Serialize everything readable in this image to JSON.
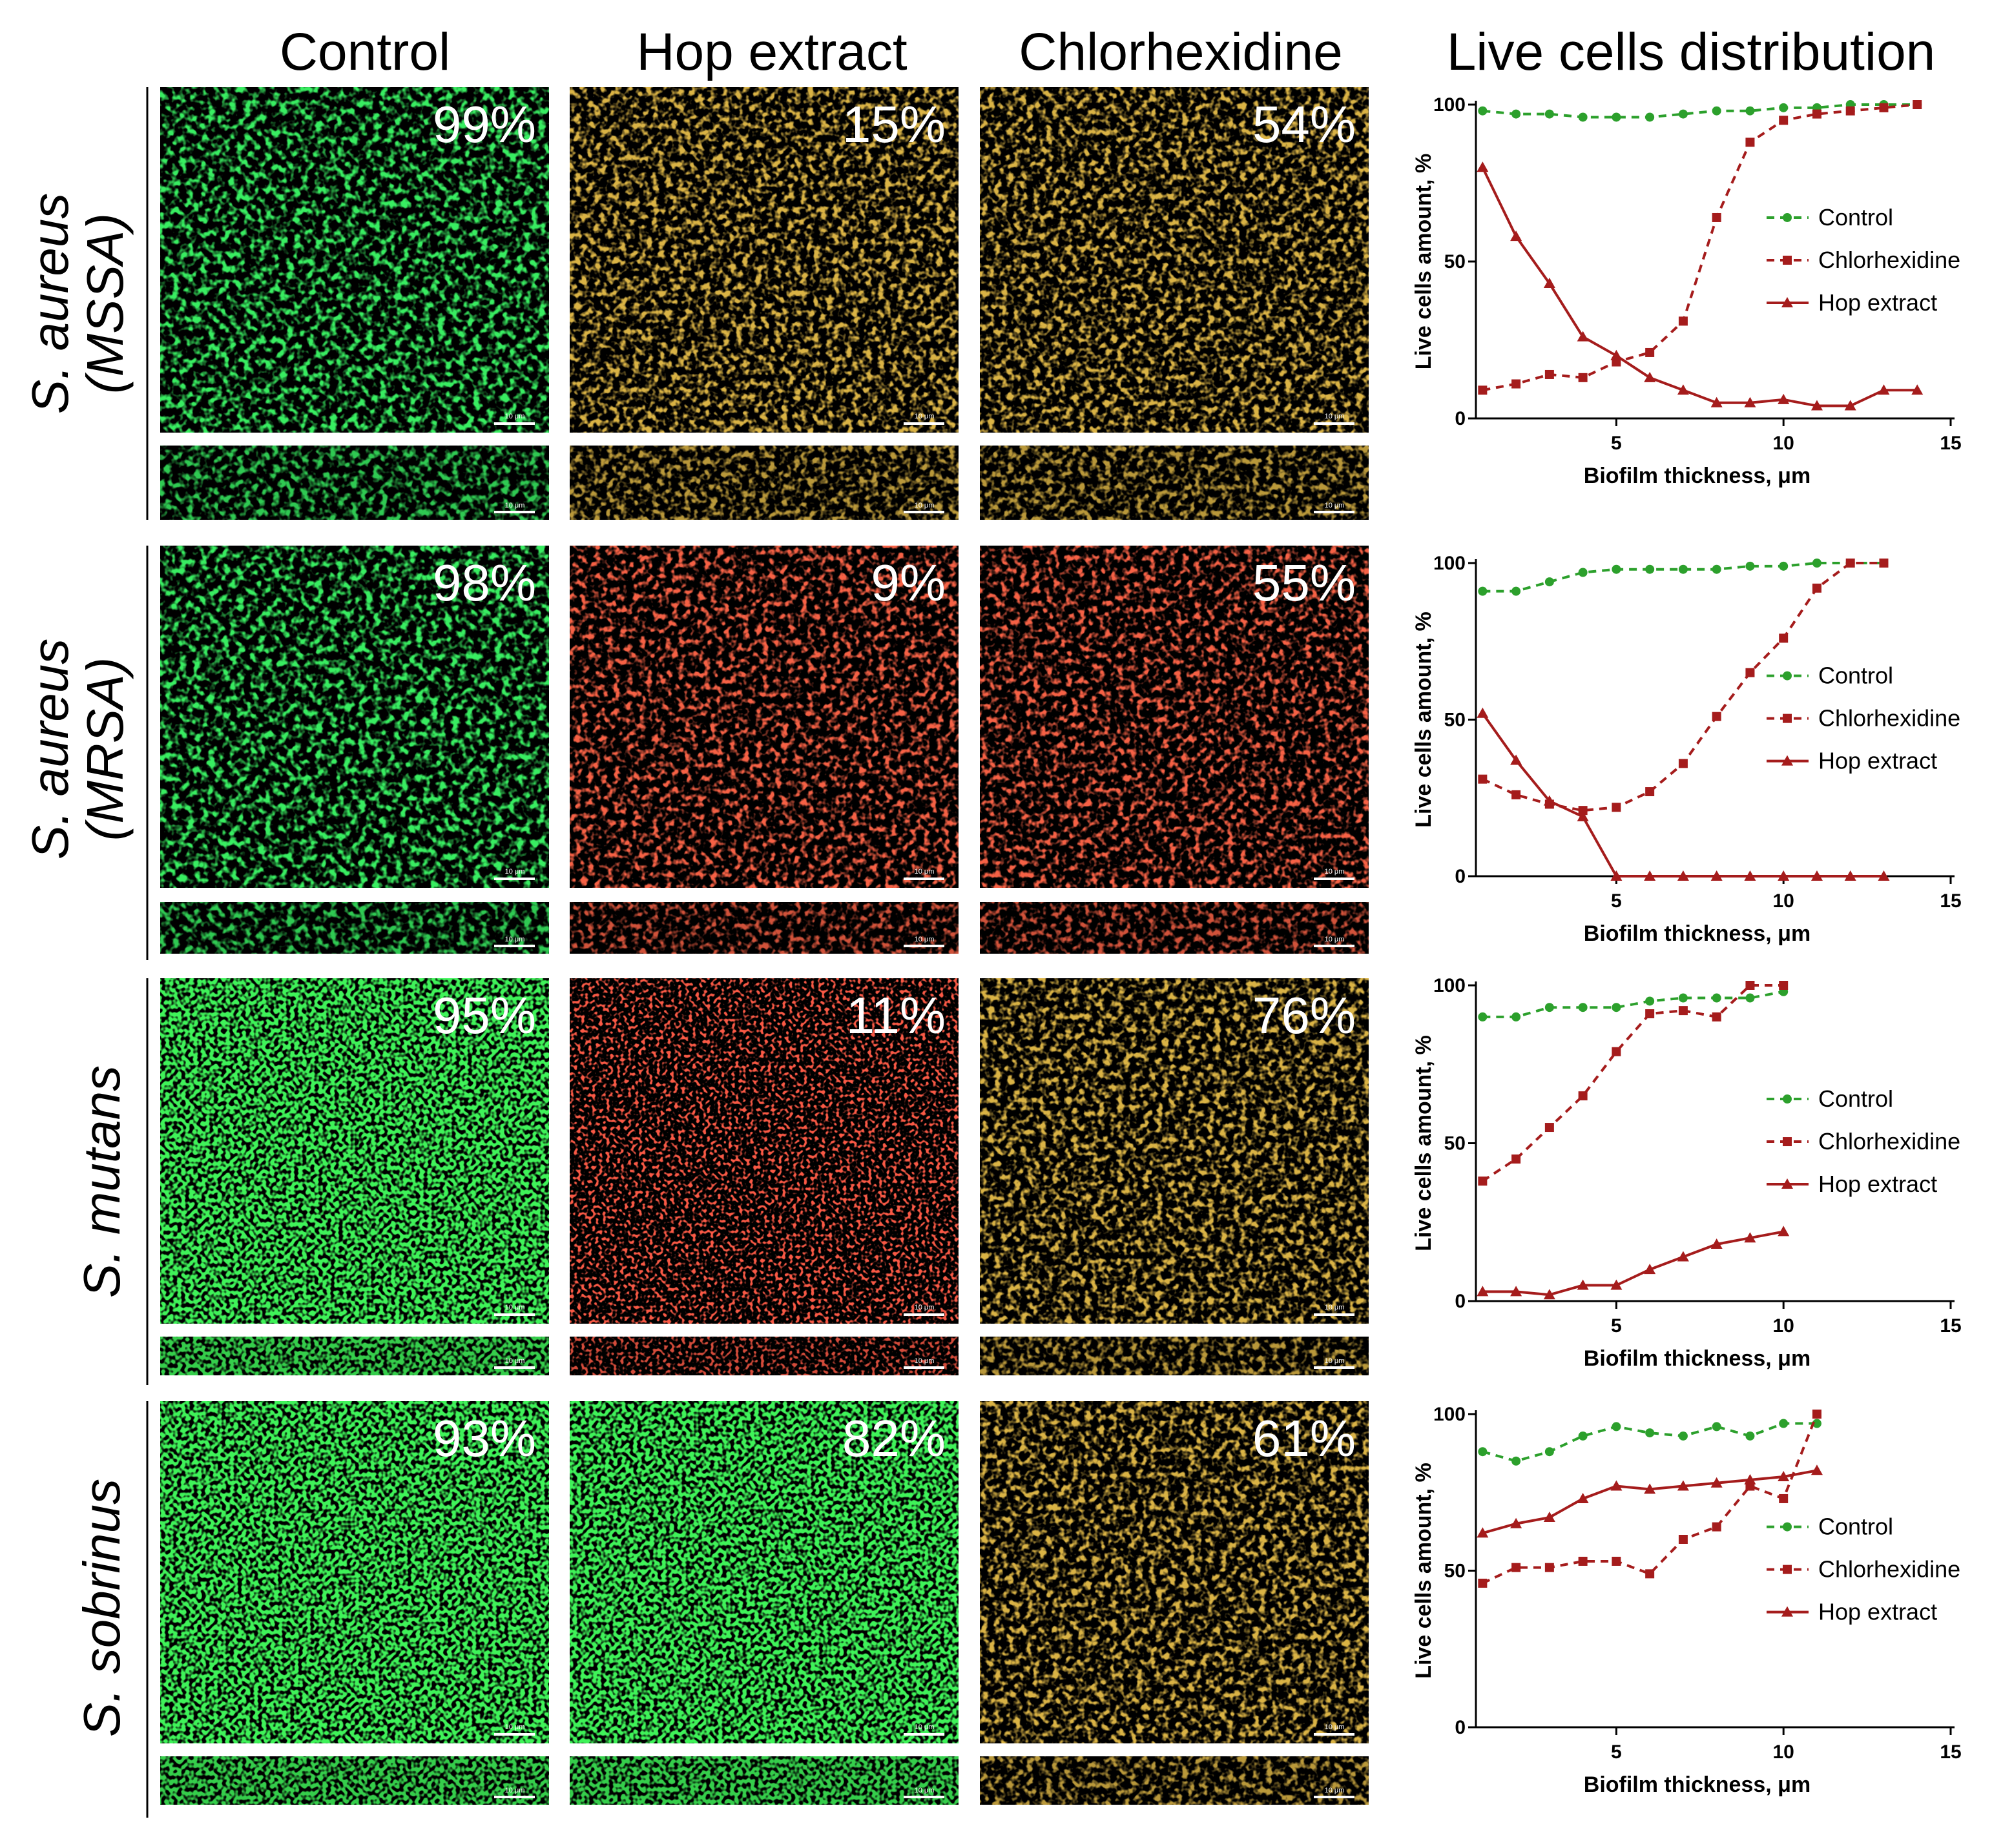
{
  "column_headers": [
    "Control",
    "Hop extract",
    "Chlorhexidine",
    "Live cells distribution"
  ],
  "rows": [
    {
      "label_species": "S. aureus",
      "label_strain": "(MSSA)",
      "percentages": [
        "99%",
        "15%",
        "54%"
      ]
    },
    {
      "label_species": "S. aureus",
      "label_strain": "(MRSA)",
      "percentages": [
        "98%",
        "9%",
        "55%"
      ]
    },
    {
      "label_species": "S. mutans",
      "label_strain": "",
      "percentages": [
        "95%",
        "11%",
        "76%"
      ]
    },
    {
      "label_species": "S. sobrinus",
      "label_strain": "",
      "percentages": [
        "93%",
        "82%",
        "61%"
      ]
    }
  ],
  "scale_bar_label": "10 μm",
  "colors": {
    "control": "#2ca02c",
    "treatment": "#a51c1c"
  },
  "chart_data": [
    {
      "type": "line",
      "xlabel": "Biofilm thickness, μm",
      "ylabel": "Live cells amount, %",
      "xlim": [
        0.8,
        15
      ],
      "ylim": [
        0,
        100
      ],
      "xticks": [
        5,
        10,
        15
      ],
      "yticks": [
        0,
        50,
        100
      ],
      "legend": "right",
      "series": [
        {
          "name": "Control",
          "x": [
            1,
            2,
            3,
            4,
            5,
            6,
            7,
            8,
            9,
            10,
            11,
            12,
            13,
            14
          ],
          "y": [
            98,
            97,
            97,
            96,
            96,
            96,
            97,
            98,
            98,
            99,
            99,
            100,
            100,
            100
          ]
        },
        {
          "name": "Chlorhexidine",
          "x": [
            1,
            2,
            3,
            4,
            5,
            6,
            7,
            8,
            9,
            10,
            11,
            12,
            13,
            14
          ],
          "y": [
            9,
            11,
            14,
            13,
            18,
            21,
            31,
            64,
            88,
            95,
            97,
            98,
            99,
            100
          ]
        },
        {
          "name": "Hop extract",
          "x": [
            1,
            2,
            3,
            4,
            5,
            6,
            7,
            8,
            9,
            10,
            11,
            12,
            13,
            14
          ],
          "y": [
            80,
            58,
            43,
            26,
            20,
            13,
            9,
            5,
            5,
            6,
            4,
            4,
            9,
            9
          ]
        }
      ]
    },
    {
      "type": "line",
      "xlabel": "Biofilm thickness, μm",
      "ylabel": "Live cells amount, %",
      "xlim": [
        0.8,
        15
      ],
      "ylim": [
        0,
        100
      ],
      "xticks": [
        5,
        10,
        15
      ],
      "yticks": [
        0,
        50,
        100
      ],
      "legend": "right",
      "series": [
        {
          "name": "Control",
          "x": [
            1,
            2,
            3,
            4,
            5,
            6,
            7,
            8,
            9,
            10,
            11,
            12,
            13
          ],
          "y": [
            91,
            91,
            94,
            97,
            98,
            98,
            98,
            98,
            99,
            99,
            100,
            100,
            100
          ]
        },
        {
          "name": "Chlorhexidine",
          "x": [
            1,
            2,
            3,
            4,
            5,
            6,
            7,
            8,
            9,
            10,
            11,
            12,
            13
          ],
          "y": [
            31,
            26,
            23,
            21,
            22,
            27,
            36,
            51,
            65,
            76,
            92,
            100,
            100
          ]
        },
        {
          "name": "Hop extract",
          "x": [
            1,
            2,
            3,
            4,
            5,
            6,
            7,
            8,
            9,
            10,
            11,
            12,
            13
          ],
          "y": [
            52,
            37,
            24,
            19,
            0,
            0,
            0,
            0,
            0,
            0,
            0,
            0,
            0
          ]
        }
      ]
    },
    {
      "type": "line",
      "xlabel": "Biofilm thickness, μm",
      "ylabel": "Live cells amount, %",
      "xlim": [
        0.8,
        15
      ],
      "ylim": [
        0,
        100
      ],
      "xticks": [
        5,
        10,
        15
      ],
      "yticks": [
        0,
        50,
        100
      ],
      "legend": "right",
      "series": [
        {
          "name": "Control",
          "x": [
            1,
            2,
            3,
            4,
            5,
            6,
            7,
            8,
            9,
            10
          ],
          "y": [
            90,
            90,
            93,
            93,
            93,
            95,
            96,
            96,
            96,
            98
          ]
        },
        {
          "name": "Chlorhexidine",
          "x": [
            1,
            2,
            3,
            4,
            5,
            6,
            7,
            8,
            9,
            10
          ],
          "y": [
            38,
            45,
            55,
            65,
            79,
            91,
            92,
            90,
            100,
            100
          ]
        },
        {
          "name": "Hop extract",
          "x": [
            1,
            2,
            3,
            4,
            5,
            6,
            7,
            8,
            9,
            10
          ],
          "y": [
            3,
            3,
            2,
            5,
            5,
            10,
            14,
            18,
            20,
            22
          ]
        }
      ]
    },
    {
      "type": "line",
      "xlabel": "Biofilm thickness, μm",
      "ylabel": "Live cells amount, %",
      "xlim": [
        0.8,
        15
      ],
      "ylim": [
        0,
        100
      ],
      "xticks": [
        5,
        10,
        15
      ],
      "yticks": [
        0,
        50,
        100
      ],
      "legend": "right",
      "series": [
        {
          "name": "Control",
          "x": [
            1,
            2,
            3,
            4,
            5,
            6,
            7,
            8,
            9,
            10,
            11
          ],
          "y": [
            88,
            85,
            88,
            93,
            96,
            94,
            93,
            96,
            93,
            97,
            97
          ]
        },
        {
          "name": "Chlorhexidine",
          "x": [
            1,
            2,
            3,
            4,
            5,
            6,
            7,
            8,
            9,
            10,
            11
          ],
          "y": [
            46,
            51,
            51,
            53,
            53,
            49,
            60,
            64,
            77,
            73,
            100
          ]
        },
        {
          "name": "Hop extract",
          "x": [
            1,
            2,
            3,
            4,
            5,
            6,
            7,
            8,
            9,
            10,
            11
          ],
          "y": [
            62,
            65,
            67,
            73,
            77,
            76,
            77,
            78,
            79,
            80,
            82
          ]
        }
      ]
    }
  ]
}
